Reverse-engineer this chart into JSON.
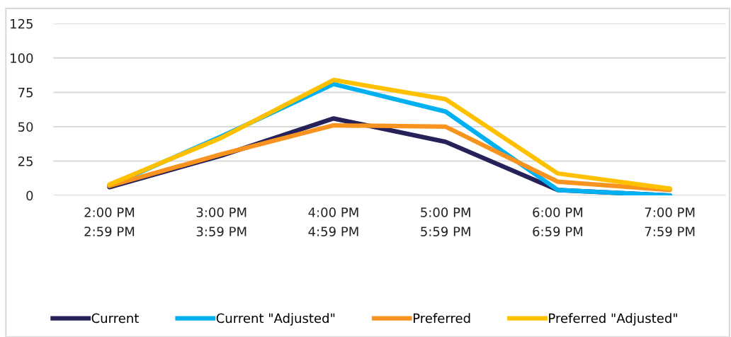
{
  "chart_data": {
    "type": "line",
    "categories": [
      "2:00 PM\n2:59 PM",
      "3:00 PM\n3:59 PM",
      "4:00 PM\n4:59 PM",
      "5:00 PM\n5:59 PM",
      "6:00 PM\n6:59 PM",
      "7:00 PM\n7:59 PM"
    ],
    "series": [
      {
        "name": "Current",
        "color": "#27215a",
        "values": [
          6,
          29,
          56,
          39,
          4,
          0
        ]
      },
      {
        "name": "Current \"Adjusted\"",
        "color": "#00b0f0",
        "values": [
          7,
          43,
          81,
          61,
          4,
          0
        ]
      },
      {
        "name": "Preferred",
        "color": "#f7931e",
        "values": [
          7,
          30,
          51,
          50,
          10,
          4
        ]
      },
      {
        "name": "Preferred \"Adjusted\"",
        "color": "#ffc000",
        "values": [
          8,
          42,
          84,
          70,
          16,
          5
        ]
      }
    ],
    "ylim": [
      0,
      125
    ],
    "yticks": [
      0,
      25,
      50,
      75,
      100,
      125
    ],
    "grid": "y",
    "legend": "bottom",
    "marker": "none",
    "line_style": "solid"
  }
}
